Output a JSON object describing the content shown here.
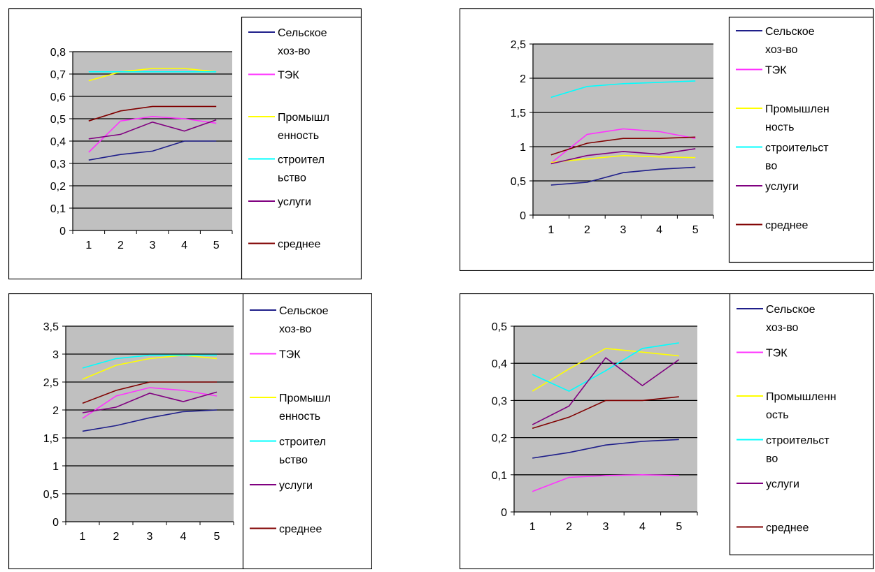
{
  "chart_data": [
    {
      "type": "line",
      "x": [
        1,
        2,
        3,
        4,
        5
      ],
      "y_ticks": [
        "0",
        "0,1",
        "0,2",
        "0,3",
        "0,4",
        "0,5",
        "0,6",
        "0,7",
        "0,8"
      ],
      "ylim": [
        0,
        0.8
      ],
      "grid": true,
      "legend_position": "right",
      "series": [
        {
          "name": "Сельское хоз-во",
          "name_lines": [
            "Сельское",
            "хоз-во"
          ],
          "color": "#1f1f8a",
          "values": [
            0.315,
            0.34,
            0.355,
            0.4,
            0.4
          ]
        },
        {
          "name": "ТЭК",
          "name_lines": [
            "ТЭК"
          ],
          "color": "#ff33ff",
          "values": [
            0.35,
            0.49,
            0.51,
            0.5,
            0.48
          ]
        },
        {
          "name": "Промышленность",
          "name_lines": [
            "Промышл",
            "енность"
          ],
          "color": "#ffff00",
          "values": [
            0.67,
            0.71,
            0.725,
            0.725,
            0.71
          ]
        },
        {
          "name": "строительство",
          "name_lines": [
            "строител",
            "ьство"
          ],
          "color": "#00ffff",
          "values": [
            0.71,
            0.71,
            0.71,
            0.71,
            0.71
          ]
        },
        {
          "name": "услуги",
          "name_lines": [
            "услуги"
          ],
          "color": "#800080",
          "values": [
            0.41,
            0.43,
            0.485,
            0.445,
            0.495
          ]
        },
        {
          "name": "среднее",
          "name_lines": [
            "среднее"
          ],
          "color": "#800000",
          "values": [
            0.49,
            0.535,
            0.555,
            0.555,
            0.555
          ]
        }
      ]
    },
    {
      "type": "line",
      "x": [
        1,
        2,
        3,
        4,
        5
      ],
      "y_ticks": [
        "0",
        "0,5",
        "1",
        "1,5",
        "2",
        "2,5"
      ],
      "ylim": [
        0,
        2.5
      ],
      "grid": true,
      "legend_position": "right",
      "series": [
        {
          "name": "Сельское хоз-во",
          "name_lines": [
            "Сельское",
            "хоз-во"
          ],
          "color": "#1f1f8a",
          "values": [
            0.44,
            0.48,
            0.62,
            0.67,
            0.7
          ]
        },
        {
          "name": "ТЭК",
          "name_lines": [
            "ТЭК"
          ],
          "color": "#ff33ff",
          "values": [
            0.76,
            1.18,
            1.26,
            1.22,
            1.12
          ]
        },
        {
          "name": "Промышленность",
          "name_lines": [
            "Промышлен",
            "ность"
          ],
          "color": "#ffff00",
          "values": [
            0.77,
            0.82,
            0.87,
            0.85,
            0.84
          ]
        },
        {
          "name": "строительство",
          "name_lines": [
            "строительст",
            "во"
          ],
          "color": "#00ffff",
          "values": [
            1.72,
            1.88,
            1.92,
            1.94,
            1.96
          ]
        },
        {
          "name": "услуги",
          "name_lines": [
            "услуги"
          ],
          "color": "#800080",
          "values": [
            0.75,
            0.87,
            0.93,
            0.89,
            0.97
          ]
        },
        {
          "name": "среднее",
          "name_lines": [
            "среднее"
          ],
          "color": "#800000",
          "values": [
            0.88,
            1.05,
            1.12,
            1.12,
            1.14
          ]
        }
      ]
    },
    {
      "type": "line",
      "x": [
        1,
        2,
        3,
        4,
        5
      ],
      "y_ticks": [
        "0",
        "0,5",
        "1",
        "1,5",
        "2",
        "2,5",
        "3",
        "3,5"
      ],
      "ylim": [
        0,
        3.5
      ],
      "grid": true,
      "legend_position": "right",
      "series": [
        {
          "name": "Сельское хоз-во",
          "name_lines": [
            "Сельское",
            "хоз-во"
          ],
          "color": "#1f1f8a",
          "values": [
            1.62,
            1.72,
            1.86,
            1.97,
            2.0
          ]
        },
        {
          "name": "ТЭК",
          "name_lines": [
            "ТЭК"
          ],
          "color": "#ff33ff",
          "values": [
            1.85,
            2.25,
            2.4,
            2.35,
            2.25
          ]
        },
        {
          "name": "Промышленность",
          "name_lines": [
            "Промышл",
            "енность"
          ],
          "color": "#ffff00",
          "values": [
            2.55,
            2.8,
            2.92,
            2.98,
            2.92
          ]
        },
        {
          "name": "строительство",
          "name_lines": [
            "строител",
            "ьство"
          ],
          "color": "#00ffff",
          "values": [
            2.75,
            2.92,
            2.98,
            2.98,
            2.98
          ]
        },
        {
          "name": "услуги",
          "name_lines": [
            "услуги"
          ],
          "color": "#800080",
          "values": [
            1.95,
            2.05,
            2.3,
            2.15,
            2.32
          ]
        },
        {
          "name": "среднее",
          "name_lines": [
            "среднее"
          ],
          "color": "#800000",
          "values": [
            2.12,
            2.35,
            2.5,
            2.5,
            2.5
          ]
        }
      ]
    },
    {
      "type": "line",
      "x": [
        1,
        2,
        3,
        4,
        5
      ],
      "y_ticks": [
        "0",
        "0,1",
        "0,2",
        "0,3",
        "0,4",
        "0,5"
      ],
      "ylim": [
        0,
        0.5
      ],
      "grid": true,
      "legend_position": "right",
      "series": [
        {
          "name": "Сельское хоз-во",
          "name_lines": [
            "Сельское",
            "хоз-во"
          ],
          "color": "#1f1f8a",
          "values": [
            0.145,
            0.16,
            0.18,
            0.19,
            0.195
          ]
        },
        {
          "name": "ТЭК",
          "name_lines": [
            "ТЭК"
          ],
          "color": "#ff33ff",
          "values": [
            0.055,
            0.093,
            0.098,
            0.1,
            0.098
          ]
        },
        {
          "name": "Промышленность",
          "name_lines": [
            "Промышленн",
            "ость"
          ],
          "color": "#ffff00",
          "values": [
            0.325,
            0.385,
            0.44,
            0.43,
            0.42
          ]
        },
        {
          "name": "строительство",
          "name_lines": [
            "строительст",
            "во"
          ],
          "color": "#00ffff",
          "values": [
            0.37,
            0.325,
            0.38,
            0.44,
            0.455
          ]
        },
        {
          "name": "услуги",
          "name_lines": [
            "услуги"
          ],
          "color": "#800080",
          "values": [
            0.235,
            0.285,
            0.415,
            0.34,
            0.41
          ]
        },
        {
          "name": "среднее",
          "name_lines": [
            "среднее"
          ],
          "color": "#800000",
          "values": [
            0.225,
            0.255,
            0.3,
            0.3,
            0.31
          ]
        }
      ]
    }
  ]
}
